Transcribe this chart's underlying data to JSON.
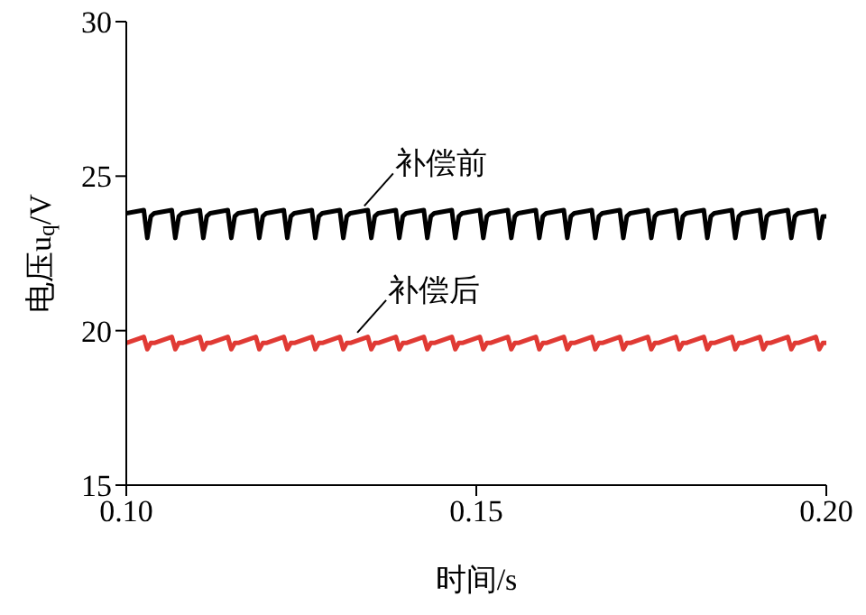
{
  "chart_data": {
    "type": "line",
    "xlabel": "时间/s",
    "ylabel": "电压u$_{q}$/V",
    "x": [
      0.1,
      0.1025,
      0.103,
      0.1035,
      0.104,
      0.1065,
      0.107,
      0.1075,
      0.108,
      0.1105,
      0.111,
      0.1115,
      0.112,
      0.1145,
      0.115,
      0.1155,
      0.116,
      0.1185,
      0.119,
      0.1195,
      0.12,
      0.1225,
      0.123,
      0.1235,
      0.124,
      0.1265,
      0.127,
      0.1275,
      0.128,
      0.1305,
      0.131,
      0.1315,
      0.132,
      0.1345,
      0.135,
      0.1355,
      0.136,
      0.1385,
      0.139,
      0.1395,
      0.14,
      0.1425,
      0.143,
      0.1435,
      0.144,
      0.1465,
      0.147,
      0.1475,
      0.148,
      0.1505,
      0.151,
      0.1515,
      0.152,
      0.1545,
      0.155,
      0.1555,
      0.156,
      0.1585,
      0.159,
      0.1595,
      0.16,
      0.1625,
      0.163,
      0.1635,
      0.164,
      0.1665,
      0.167,
      0.1675,
      0.168,
      0.1705,
      0.171,
      0.1715,
      0.172,
      0.1745,
      0.175,
      0.1755,
      0.176,
      0.1785,
      0.179,
      0.1795,
      0.18,
      0.1825,
      0.183,
      0.1835,
      0.184,
      0.1865,
      0.187,
      0.1875,
      0.188,
      0.1905,
      0.191,
      0.1915,
      0.192,
      0.1945,
      0.195,
      0.1955,
      0.196,
      0.1985,
      0.199,
      0.1995,
      0.2
    ],
    "series": [
      {
        "color": "#000000",
        "values": [
          23.8,
          23.9,
          23.0,
          23.7,
          23.8,
          23.9,
          23.0,
          23.7,
          23.8,
          23.9,
          23.0,
          23.7,
          23.8,
          23.9,
          23.0,
          23.7,
          23.8,
          23.9,
          23.0,
          23.7,
          23.8,
          23.9,
          23.0,
          23.7,
          23.8,
          23.9,
          23.0,
          23.7,
          23.8,
          23.9,
          23.0,
          23.7,
          23.8,
          23.9,
          23.0,
          23.7,
          23.8,
          23.9,
          23.0,
          23.7,
          23.8,
          23.9,
          23.0,
          23.7,
          23.8,
          23.9,
          23.0,
          23.7,
          23.8,
          23.9,
          23.0,
          23.7,
          23.8,
          23.9,
          23.0,
          23.7,
          23.8,
          23.9,
          23.0,
          23.7,
          23.8,
          23.9,
          23.0,
          23.7,
          23.8,
          23.9,
          23.0,
          23.7,
          23.8,
          23.9,
          23.0,
          23.7,
          23.8,
          23.9,
          23.0,
          23.7,
          23.8,
          23.9,
          23.0,
          23.7,
          23.8,
          23.9,
          23.0,
          23.7,
          23.8,
          23.9,
          23.0,
          23.7,
          23.8,
          23.9,
          23.0,
          23.7,
          23.8,
          23.9,
          23.0,
          23.7,
          23.8,
          23.9,
          23.0,
          23.7,
          23.7
        ]
      },
      {
        "color": "#e03a34",
        "values": [
          19.6,
          19.8,
          19.4,
          19.6,
          19.6,
          19.8,
          19.4,
          19.6,
          19.6,
          19.8,
          19.4,
          19.6,
          19.6,
          19.8,
          19.4,
          19.6,
          19.6,
          19.8,
          19.4,
          19.6,
          19.6,
          19.8,
          19.4,
          19.6,
          19.6,
          19.8,
          19.4,
          19.6,
          19.6,
          19.8,
          19.4,
          19.6,
          19.6,
          19.8,
          19.4,
          19.6,
          19.6,
          19.8,
          19.4,
          19.6,
          19.6,
          19.8,
          19.4,
          19.6,
          19.6,
          19.8,
          19.4,
          19.6,
          19.6,
          19.8,
          19.4,
          19.6,
          19.6,
          19.8,
          19.4,
          19.6,
          19.6,
          19.8,
          19.4,
          19.6,
          19.6,
          19.8,
          19.4,
          19.6,
          19.6,
          19.8,
          19.4,
          19.6,
          19.6,
          19.8,
          19.4,
          19.6,
          19.6,
          19.8,
          19.4,
          19.6,
          19.6,
          19.8,
          19.4,
          19.6,
          19.6,
          19.8,
          19.4,
          19.6,
          19.6,
          19.8,
          19.4,
          19.6,
          19.6,
          19.8,
          19.4,
          19.6,
          19.6,
          19.8,
          19.4,
          19.6,
          19.6,
          19.8,
          19.4,
          19.6,
          19.6
        ]
      }
    ],
    "annotations": [
      {
        "text": "补偿前",
        "x": 0.134,
        "y": 23.8
      },
      {
        "text": "补偿后",
        "x": 0.133,
        "y": 19.7
      }
    ],
    "xlim": [
      0.1,
      0.2
    ],
    "xticks": [
      {
        "value": 0.1,
        "label": "0.10"
      },
      0.15,
      {
        "value": 0.2,
        "label": "0.20"
      }
    ],
    "ylim": [
      15,
      30
    ],
    "yticks": [
      15,
      20,
      25,
      30
    ],
    "marker": "none",
    "line_style": "solid"
  }
}
